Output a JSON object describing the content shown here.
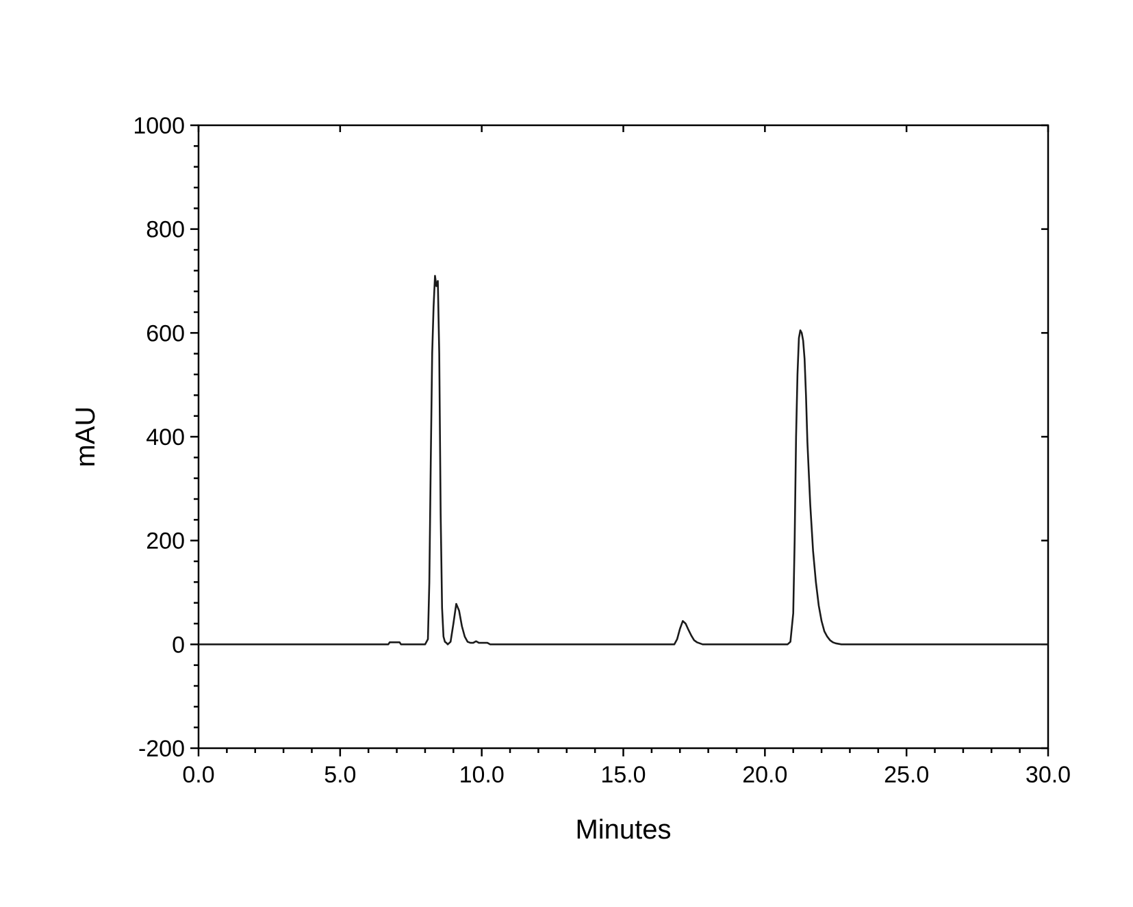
{
  "chart_data": {
    "type": "line",
    "title": "",
    "xlabel": "Minutes",
    "ylabel": "mAU",
    "xlim": [
      0,
      30
    ],
    "ylim": [
      -200,
      1000
    ],
    "x_ticks": [
      0,
      5,
      10,
      15,
      20,
      25,
      30
    ],
    "x_tick_labels": [
      "0.0",
      "5.0",
      "10.0",
      "15.0",
      "20.0",
      "25.0",
      "30.0"
    ],
    "y_ticks": [
      -200,
      0,
      200,
      400,
      600,
      800,
      1000
    ],
    "y_tick_labels": [
      "-200",
      "0",
      "200",
      "400",
      "600",
      "800",
      "1000"
    ],
    "grid": false,
    "line_color": "#1a1a1a",
    "series": [
      {
        "x": [
          0,
          6.7,
          6.75,
          7.1,
          7.15,
          8.0,
          8.1,
          8.15,
          8.2,
          8.25,
          8.3,
          8.35,
          8.4,
          8.45,
          8.5,
          8.55,
          8.6,
          8.65,
          8.7,
          8.75,
          8.8,
          8.9,
          9.0,
          9.1,
          9.2,
          9.3,
          9.4,
          9.5,
          9.6,
          9.7,
          9.8,
          9.9,
          10.0,
          10.2,
          10.3,
          16.8,
          16.9,
          17.0,
          17.1,
          17.2,
          17.3,
          17.4,
          17.5,
          17.6,
          17.7,
          17.8,
          20.8,
          20.9,
          21.0,
          21.05,
          21.1,
          21.15,
          21.2,
          21.25,
          21.3,
          21.35,
          21.4,
          21.45,
          21.5,
          21.6,
          21.7,
          21.8,
          21.9,
          22.0,
          22.1,
          22.2,
          22.3,
          22.4,
          22.5,
          22.6,
          22.7,
          22.8,
          23.0,
          30.0
        ],
        "y": [
          0,
          0,
          4,
          4,
          0,
          0,
          10,
          120,
          350,
          560,
          650,
          710,
          690,
          700,
          560,
          250,
          70,
          15,
          5,
          3,
          0,
          5,
          40,
          78,
          65,
          35,
          15,
          5,
          3,
          3,
          6,
          3,
          3,
          3,
          0,
          0,
          10,
          30,
          45,
          40,
          28,
          17,
          8,
          4,
          2,
          0,
          0,
          5,
          60,
          200,
          400,
          520,
          590,
          605,
          600,
          585,
          550,
          480,
          390,
          270,
          180,
          120,
          75,
          45,
          25,
          15,
          8,
          4,
          2,
          1,
          0,
          0,
          0,
          0
        ]
      }
    ]
  }
}
